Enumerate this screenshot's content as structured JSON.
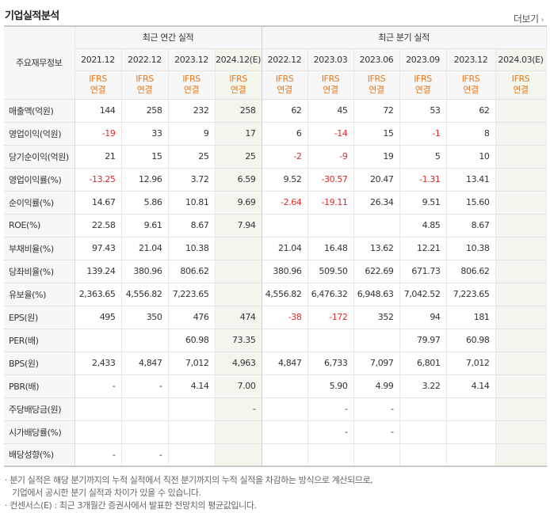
{
  "header": {
    "title": "기업실적분석",
    "more_label": "더보기",
    "more_icon": "›"
  },
  "table": {
    "corner_label": "주요재무정보",
    "annual_group": "최근 연간 실적",
    "quarter_group": "최근 분기 실적",
    "periods": [
      "2021.12",
      "2022.12",
      "2023.12",
      "2024.12(E)",
      "2022.12",
      "2023.03",
      "2023.06",
      "2023.09",
      "2023.12",
      "2024.03(E)"
    ],
    "standard_top": "IFRS",
    "standard_bottom": "연결",
    "rows": [
      {
        "label": "매출액(억원)",
        "values": [
          "144",
          "258",
          "232",
          "258",
          "62",
          "45",
          "72",
          "53",
          "62",
          ""
        ]
      },
      {
        "label": "영업이익(억원)",
        "values": [
          "-19",
          "33",
          "9",
          "17",
          "6",
          "-14",
          "15",
          "-1",
          "8",
          ""
        ]
      },
      {
        "label": "당기순이익(억원)",
        "values": [
          "21",
          "15",
          "25",
          "25",
          "-2",
          "-9",
          "19",
          "5",
          "10",
          ""
        ]
      },
      {
        "label": "영업이익률(%)",
        "values": [
          "-13.25",
          "12.96",
          "3.72",
          "6.59",
          "9.52",
          "-30.57",
          "20.47",
          "-1.31",
          "13.41",
          ""
        ]
      },
      {
        "label": "순이익률(%)",
        "values": [
          "14.67",
          "5.86",
          "10.81",
          "9.69",
          "-2.64",
          "-19.11",
          "26.34",
          "9.51",
          "15.60",
          ""
        ]
      },
      {
        "label": "ROE(%)",
        "values": [
          "22.58",
          "9.61",
          "8.67",
          "7.94",
          "",
          "",
          "",
          "4.85",
          "8.67",
          ""
        ]
      },
      {
        "label": "부채비율(%)",
        "values": [
          "97.43",
          "21.04",
          "10.38",
          "",
          "21.04",
          "16.48",
          "13.62",
          "12.21",
          "10.38",
          ""
        ]
      },
      {
        "label": "당좌비율(%)",
        "values": [
          "139.24",
          "380.96",
          "806.62",
          "",
          "380.96",
          "509.50",
          "622.69",
          "671.73",
          "806.62",
          ""
        ]
      },
      {
        "label": "유보율(%)",
        "values": [
          "2,363.65",
          "4,556.82",
          "7,223.65",
          "",
          "4,556.82",
          "6,476.32",
          "6,948.63",
          "7,042.52",
          "7,223.65",
          ""
        ]
      },
      {
        "label": "EPS(원)",
        "values": [
          "495",
          "350",
          "476",
          "474",
          "-38",
          "-172",
          "352",
          "94",
          "181",
          ""
        ]
      },
      {
        "label": "PER(배)",
        "values": [
          "",
          "",
          "60.98",
          "73.35",
          "",
          "",
          "",
          "79.97",
          "60.98",
          ""
        ]
      },
      {
        "label": "BPS(원)",
        "values": [
          "2,433",
          "4,847",
          "7,012",
          "4,963",
          "4,847",
          "6,733",
          "7,097",
          "6,801",
          "7,012",
          ""
        ]
      },
      {
        "label": "PBR(배)",
        "values": [
          "-",
          "-",
          "4.14",
          "7.00",
          "",
          "5.90",
          "4.99",
          "3.22",
          "4.14",
          ""
        ]
      },
      {
        "label": "주당배당금(원)",
        "values": [
          "",
          "",
          "",
          "-",
          "",
          "-",
          "-",
          "",
          "",
          ""
        ]
      },
      {
        "label": "시가배당률(%)",
        "values": [
          "",
          "",
          "",
          "",
          "",
          "-",
          "-",
          "",
          "",
          ""
        ]
      },
      {
        "label": "배당성향(%)",
        "values": [
          "-",
          "-",
          "",
          "",
          "",
          "",
          "",
          "",
          "",
          ""
        ]
      }
    ],
    "negative_color": "#e02a2a",
    "accent_color": "#e8781b"
  },
  "notes": {
    "line1": "· 분기 실적은 해당 분기까지의 누적 실적에서 직전 분기까지의 누적 실적을 차감하는 방식으로 계산되므로,",
    "line2": "기업에서 공시한 분기 실적과 차이가 있을 수 있습니다.",
    "line3": "· 컨센서스(E) : 최근 3개월간 증권사에서 발표한 전망치의 평균값입니다."
  }
}
